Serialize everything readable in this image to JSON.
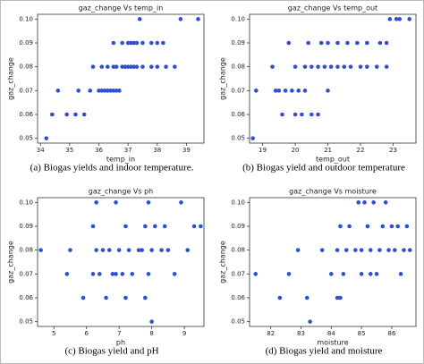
{
  "chart_data": [
    {
      "type": "scatter",
      "title": "gaz_change Vs temp_in",
      "x_label": "temp_in",
      "y_label": "gaz_change",
      "caption": "(a)  Biogas yields and indoor temperature.",
      "color": "#3050d0",
      "xlim": [
        33.9,
        39.6
      ],
      "xticks": [
        34,
        35,
        36,
        37,
        38,
        39
      ],
      "ylim": [
        0.048,
        0.102
      ],
      "yticks": [
        0.05,
        0.06,
        0.07,
        0.08,
        0.09,
        {
          "value": 0.1,
          "label": "0.10"
        }
      ],
      "x": [
        34.2,
        34.4,
        34.6,
        34.9,
        35.2,
        35.3,
        35.5,
        35.7,
        35.8,
        36.0,
        36.1,
        36.2,
        36.3,
        36.4,
        36.5,
        36.6,
        36.7,
        36.1,
        36.3,
        36.5,
        36.6,
        36.8,
        36.9,
        37.0,
        37.1,
        37.2,
        37.3,
        37.5,
        37.8,
        38.0,
        38.3,
        38.6,
        36.5,
        36.8,
        37.0,
        37.1,
        37.2,
        37.3,
        37.5,
        37.8,
        38.0,
        38.2,
        37.4,
        38.8,
        39.4
      ],
      "values": [
        0.05,
        0.06,
        0.07,
        0.06,
        0.06,
        0.07,
        0.06,
        0.07,
        0.08,
        0.07,
        0.07,
        0.07,
        0.07,
        0.07,
        0.07,
        0.07,
        0.07,
        0.08,
        0.08,
        0.08,
        0.08,
        0.08,
        0.08,
        0.08,
        0.08,
        0.08,
        0.08,
        0.08,
        0.08,
        0.08,
        0.08,
        0.08,
        0.09,
        0.09,
        0.09,
        0.09,
        0.09,
        0.09,
        0.09,
        0.09,
        0.09,
        0.09,
        0.1,
        0.1,
        0.1
      ]
    },
    {
      "type": "scatter",
      "title": "gaz_change Vs temp_out",
      "x_label": "temp_out",
      "y_label": "gaz_change",
      "caption": "(b) Biogas yield and outdoor temperature",
      "color": "#3050d0",
      "xlim": [
        18.6,
        23.7
      ],
      "xticks": [
        19,
        20,
        21,
        22,
        23
      ],
      "ylim": [
        0.048,
        0.102
      ],
      "yticks": [
        0.05,
        0.06,
        0.07,
        0.08,
        0.09,
        {
          "value": 0.1,
          "label": "0.10"
        }
      ],
      "x": [
        18.7,
        18.8,
        19.3,
        19.4,
        19.5,
        19.6,
        19.7,
        19.9,
        20.0,
        20.1,
        20.2,
        20.3,
        20.5,
        20.7,
        20.0,
        20.3,
        20.5,
        20.7,
        20.9,
        21.1,
        21.3,
        21.5,
        21.7,
        22.0,
        22.2,
        22.5,
        22.8,
        19.8,
        20.4,
        20.8,
        21.0,
        21.3,
        21.6,
        21.9,
        22.2,
        22.6,
        22.8,
        22.9,
        23.1,
        23.2,
        23.5,
        21.0
      ],
      "values": [
        0.05,
        0.07,
        0.08,
        0.07,
        0.07,
        0.06,
        0.07,
        0.07,
        0.06,
        0.07,
        0.06,
        0.07,
        0.06,
        0.06,
        0.08,
        0.08,
        0.08,
        0.08,
        0.08,
        0.08,
        0.08,
        0.08,
        0.08,
        0.08,
        0.08,
        0.08,
        0.08,
        0.09,
        0.09,
        0.09,
        0.09,
        0.09,
        0.09,
        0.09,
        0.09,
        0.09,
        0.09,
        0.1,
        0.1,
        0.1,
        0.1,
        0.07
      ]
    },
    {
      "type": "scatter",
      "title": "gaz_change Vs ph",
      "x_label": "ph",
      "y_label": "gaz_change",
      "caption": "(c) Biogas yield and pH",
      "color": "#3050d0",
      "xlim": [
        4.5,
        9.6
      ],
      "xticks": [
        5,
        6,
        7,
        8,
        9
      ],
      "ylim": [
        0.048,
        0.102
      ],
      "yticks": [
        0.05,
        0.06,
        0.07,
        0.08,
        0.09,
        {
          "value": 0.1,
          "label": "0.10"
        }
      ],
      "x": [
        4.6,
        5.4,
        5.5,
        5.9,
        6.2,
        6.2,
        6.3,
        6.3,
        6.4,
        6.5,
        6.6,
        6.7,
        6.8,
        6.9,
        6.9,
        7.0,
        7.1,
        7.2,
        7.2,
        7.3,
        7.4,
        7.6,
        7.7,
        7.8,
        7.8,
        7.9,
        7.9,
        8.0,
        8.0,
        8.1,
        8.3,
        8.4,
        8.5,
        8.7,
        8.9,
        9.1,
        9.3,
        9.5
      ],
      "values": [
        0.08,
        0.07,
        0.08,
        0.06,
        0.07,
        0.09,
        0.1,
        0.08,
        0.07,
        0.08,
        0.06,
        0.08,
        0.07,
        0.07,
        0.1,
        0.08,
        0.07,
        0.06,
        0.09,
        0.08,
        0.07,
        0.08,
        0.08,
        0.09,
        0.06,
        0.1,
        0.07,
        0.08,
        0.05,
        0.09,
        0.08,
        0.09,
        0.08,
        0.07,
        0.1,
        0.08,
        0.09,
        0.09
      ]
    },
    {
      "type": "scatter",
      "title": "gaz_change Vs moisture",
      "x_label": "moisture",
      "y_label": "gaz_change",
      "caption": "(d) Biogas yield and moisture",
      "color": "#3050d0",
      "xlim": [
        81.3,
        86.8
      ],
      "xticks": [
        82,
        83,
        84,
        85,
        86
      ],
      "ylim": [
        0.048,
        0.102
      ],
      "yticks": [
        0.05,
        0.06,
        0.07,
        0.08,
        0.09,
        {
          "value": 0.1,
          "label": "0.10"
        }
      ],
      "x": [
        81.5,
        82.3,
        82.6,
        82.9,
        83.2,
        83.3,
        83.7,
        84.0,
        84.2,
        84.3,
        84.2,
        84.4,
        84.5,
        84.6,
        84.8,
        84.9,
        85.0,
        85.1,
        85.0,
        85.2,
        85.3,
        85.4,
        85.5,
        85.6,
        85.7,
        85.8,
        85.9,
        86.0,
        86.1,
        86.2,
        86.3,
        86.4,
        86.5,
        86.6,
        84.3,
        85.3
      ],
      "values": [
        0.07,
        0.06,
        0.07,
        0.08,
        0.06,
        0.05,
        0.08,
        0.07,
        0.06,
        0.06,
        0.08,
        0.07,
        0.08,
        0.09,
        0.08,
        0.1,
        0.08,
        0.1,
        0.07,
        0.09,
        0.08,
        0.1,
        0.07,
        0.08,
        0.09,
        0.1,
        0.08,
        0.09,
        0.08,
        0.09,
        0.07,
        0.08,
        0.09,
        0.08,
        0.09,
        0.07
      ]
    }
  ]
}
